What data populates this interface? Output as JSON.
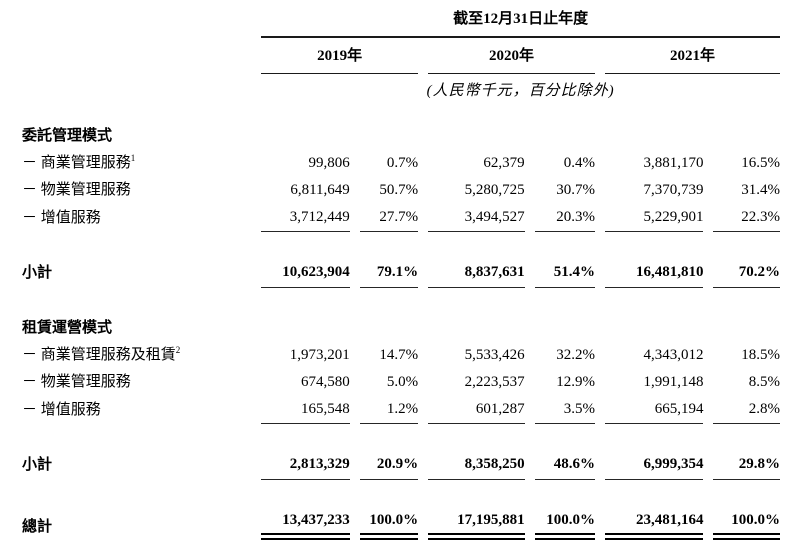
{
  "table": {
    "period_header": "截至12月31日止年度",
    "unit_note": "(人民幣千元，百分比除外)",
    "years": [
      "2019年",
      "2020年",
      "2021年"
    ],
    "sections": [
      {
        "title": "委託管理模式",
        "rows": [
          {
            "label": "－ 商業管理服務",
            "sup": "1",
            "values": [
              "99,806",
              "0.7%",
              "62,379",
              "0.4%",
              "3,881,170",
              "16.5%"
            ]
          },
          {
            "label": "－ 物業管理服務",
            "sup": "",
            "values": [
              "6,811,649",
              "50.7%",
              "5,280,725",
              "30.7%",
              "7,370,739",
              "31.4%"
            ]
          },
          {
            "label": "－ 增值服務",
            "sup": "",
            "values": [
              "3,712,449",
              "27.7%",
              "3,494,527",
              "20.3%",
              "5,229,901",
              "22.3%"
            ]
          }
        ],
        "subtotal": {
          "label": "小計",
          "values": [
            "10,623,904",
            "79.1%",
            "8,837,631",
            "51.4%",
            "16,481,810",
            "70.2%"
          ]
        }
      },
      {
        "title": "租賃運營模式",
        "rows": [
          {
            "label": "－ 商業管理服務及租賃",
            "sup": "2",
            "values": [
              "1,973,201",
              "14.7%",
              "5,533,426",
              "32.2%",
              "4,343,012",
              "18.5%"
            ]
          },
          {
            "label": "－ 物業管理服務",
            "sup": "",
            "values": [
              "674,580",
              "5.0%",
              "2,223,537",
              "12.9%",
              "1,991,148",
              "8.5%"
            ]
          },
          {
            "label": "－ 增值服務",
            "sup": "",
            "values": [
              "165,548",
              "1.2%",
              "601,287",
              "3.5%",
              "665,194",
              "2.8%"
            ]
          }
        ],
        "subtotal": {
          "label": "小計",
          "values": [
            "2,813,329",
            "20.9%",
            "8,358,250",
            "48.6%",
            "6,999,354",
            "29.8%"
          ]
        }
      }
    ],
    "total": {
      "label": "總計",
      "values": [
        "13,437,233",
        "100.0%",
        "17,195,881",
        "100.0%",
        "23,481,164",
        "100.0%"
      ]
    }
  }
}
